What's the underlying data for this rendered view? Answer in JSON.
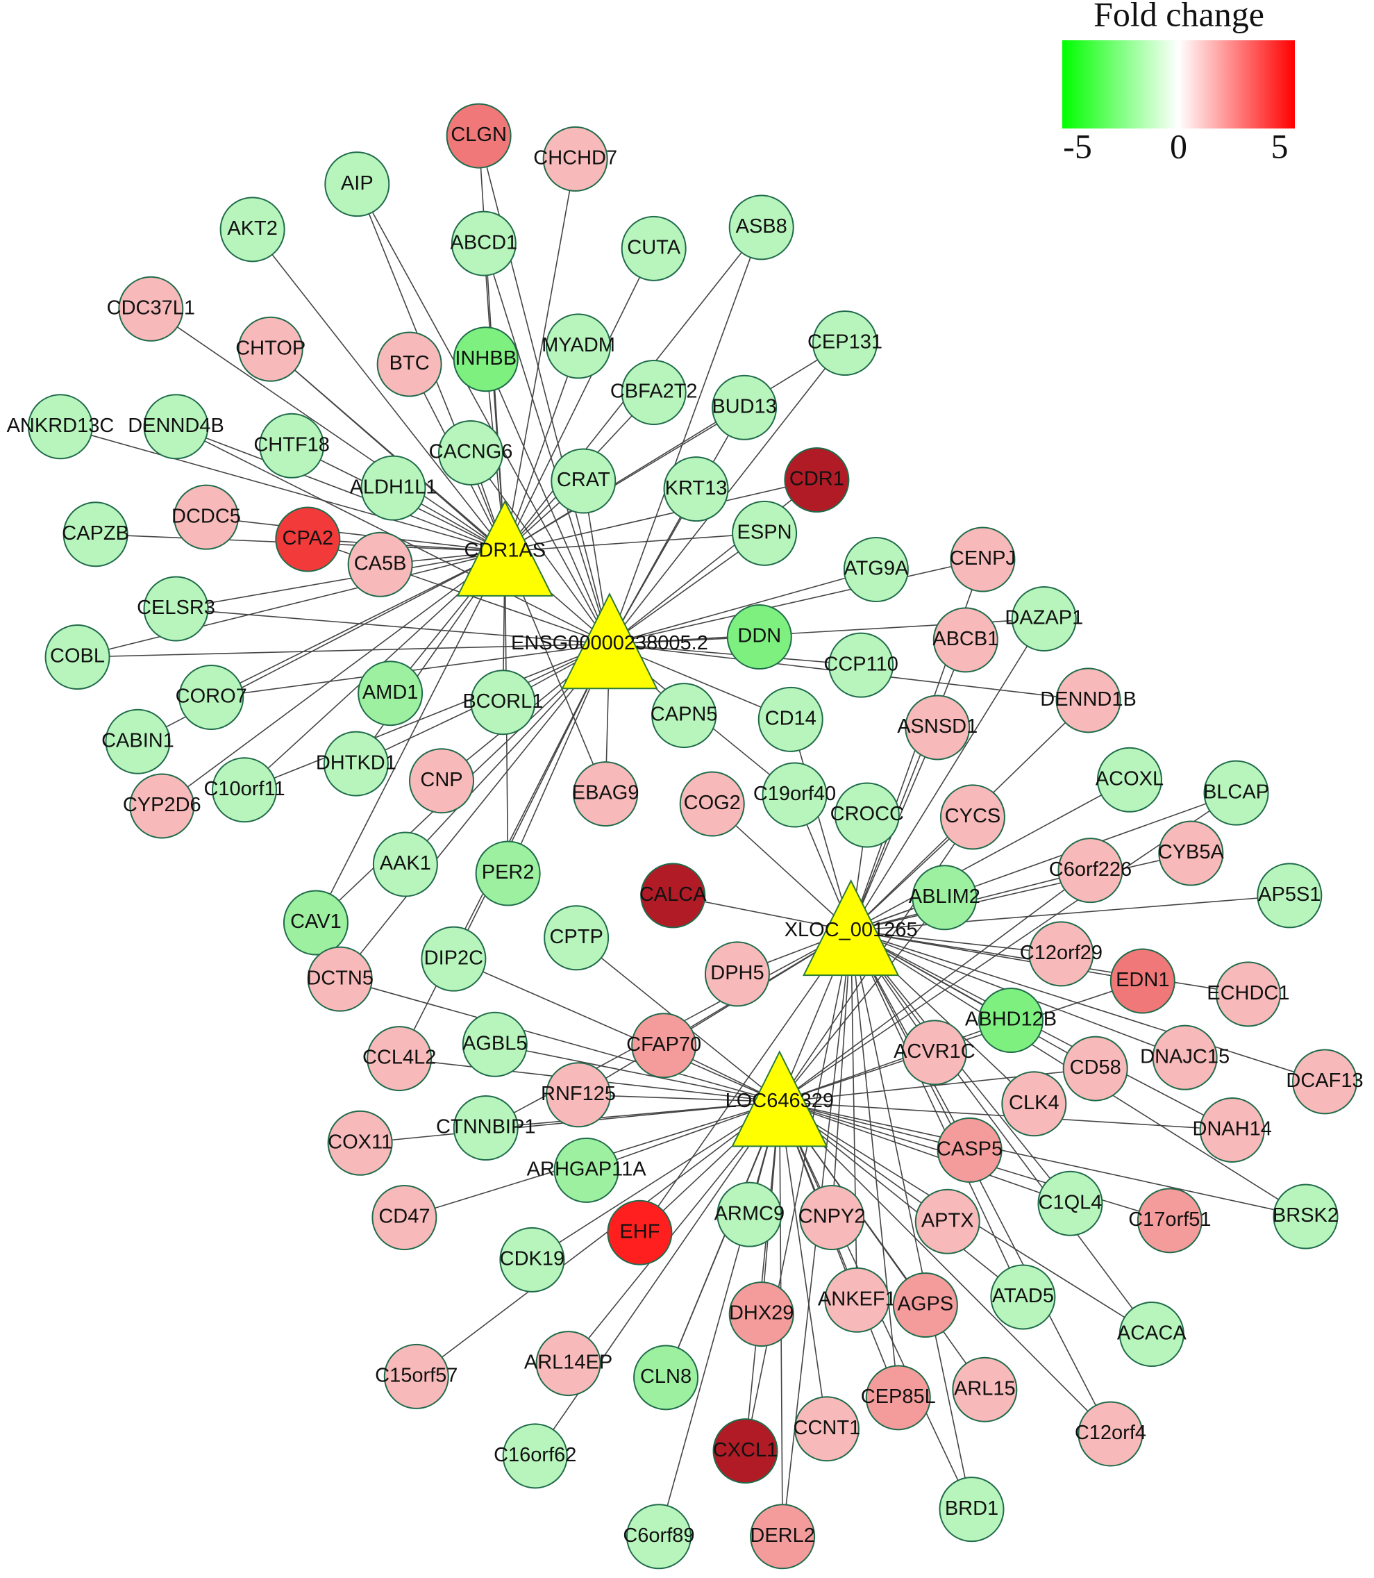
{
  "legend": {
    "title": "Fold change",
    "ticks": [
      -5,
      0,
      5
    ],
    "lim": [
      -5,
      5
    ],
    "colors": [
      "#00ff00",
      "#ffffff",
      "#ff0000"
    ]
  },
  "hubs": [
    {
      "label": "CDR1AS",
      "color": "#ffff00"
    },
    {
      "label": "ENSG00000238005.2",
      "color": "#ffff00"
    },
    {
      "label": "XLOC_001265",
      "color": "#ffff00"
    },
    {
      "label": "LOC646329",
      "color": "#ffff00"
    }
  ],
  "nodes": [
    {
      "label": "CLGN",
      "color": "#f07878"
    },
    {
      "label": "CHCHD7",
      "color": "#f7b9b9"
    },
    {
      "label": "AIP",
      "color": "#b8f5bd"
    },
    {
      "label": "AKT2",
      "color": "#b8f5bd"
    },
    {
      "label": "ABCD1",
      "color": "#b8f5bd"
    },
    {
      "label": "CUTA",
      "color": "#b8f5bd"
    },
    {
      "label": "ASB8",
      "color": "#b8f5bd"
    },
    {
      "label": "CDC37L1",
      "color": "#f7b9b9"
    },
    {
      "label": "CHTOP",
      "color": "#f7b9b9"
    },
    {
      "label": "BTC",
      "color": "#f7b9b9"
    },
    {
      "label": "INHBB",
      "color": "#7df080"
    },
    {
      "label": "MYADM",
      "color": "#b8f5bd"
    },
    {
      "label": "CEP131",
      "color": "#b8f5bd"
    },
    {
      "label": "CBFA2T2",
      "color": "#b8f5bd"
    },
    {
      "label": "BUD13",
      "color": "#b8f5bd"
    },
    {
      "label": "ANKRD13C",
      "color": "#b8f5bd"
    },
    {
      "label": "DENND4B",
      "color": "#b8f5bd"
    },
    {
      "label": "CHTF18",
      "color": "#b8f5bd"
    },
    {
      "label": "CACNG6",
      "color": "#b8f5bd"
    },
    {
      "label": "ALDH1L1",
      "color": "#b8f5bd"
    },
    {
      "label": "CRAT",
      "color": "#b8f5bd"
    },
    {
      "label": "KRT13",
      "color": "#b8f5bd"
    },
    {
      "label": "CDR1",
      "color": "#b01b26"
    },
    {
      "label": "DCDC5",
      "color": "#f7b9b9"
    },
    {
      "label": "CPA2",
      "color": "#f23a3a"
    },
    {
      "label": "CA5B",
      "color": "#f7b9b9"
    },
    {
      "label": "ESPN",
      "color": "#b8f5bd"
    },
    {
      "label": "CAPZB",
      "color": "#b8f5bd"
    },
    {
      "label": "CENPJ",
      "color": "#f7b9b9"
    },
    {
      "label": "ATG9A",
      "color": "#b8f5bd"
    },
    {
      "label": "CELSR3",
      "color": "#b8f5bd"
    },
    {
      "label": "DDN",
      "color": "#7df080"
    },
    {
      "label": "DAZAP1",
      "color": "#b8f5bd"
    },
    {
      "label": "ABCB1",
      "color": "#f7b9b9"
    },
    {
      "label": "COBL",
      "color": "#b8f5bd"
    },
    {
      "label": "CCP110",
      "color": "#b8f5bd"
    },
    {
      "label": "CORO7",
      "color": "#b8f5bd"
    },
    {
      "label": "AMD1",
      "color": "#9cf0a0"
    },
    {
      "label": "BCORL1",
      "color": "#b8f5bd"
    },
    {
      "label": "CAPN5",
      "color": "#b8f5bd"
    },
    {
      "label": "CD14",
      "color": "#b8f5bd"
    },
    {
      "label": "ASNSD1",
      "color": "#f7b9b9"
    },
    {
      "label": "DENND1B",
      "color": "#f7b9b9"
    },
    {
      "label": "CABIN1",
      "color": "#b8f5bd"
    },
    {
      "label": "DHTKD1",
      "color": "#b8f5bd"
    },
    {
      "label": "CNP",
      "color": "#f7b9b9"
    },
    {
      "label": "C10orf11",
      "color": "#b8f5bd"
    },
    {
      "label": "CYP2D6",
      "color": "#f7b9b9"
    },
    {
      "label": "EBAG9",
      "color": "#f7b9b9"
    },
    {
      "label": "COG2",
      "color": "#f7b9b9"
    },
    {
      "label": "C19orf40",
      "color": "#b8f5bd"
    },
    {
      "label": "CROCC",
      "color": "#b8f5bd"
    },
    {
      "label": "CYCS",
      "color": "#f7b9b9"
    },
    {
      "label": "ACOXL",
      "color": "#b8f5bd"
    },
    {
      "label": "BLCAP",
      "color": "#b8f5bd"
    },
    {
      "label": "AAK1",
      "color": "#b8f5bd"
    },
    {
      "label": "PER2",
      "color": "#9cf0a0"
    },
    {
      "label": "CALCA",
      "color": "#b01b26"
    },
    {
      "label": "C6orf226",
      "color": "#f7b9b9"
    },
    {
      "label": "CYB5A",
      "color": "#f7b9b9"
    },
    {
      "label": "ABLIM2",
      "color": "#9cf0a0"
    },
    {
      "label": "AP5S1",
      "color": "#b8f5bd"
    },
    {
      "label": "CAV1",
      "color": "#9cf0a0"
    },
    {
      "label": "CPTP",
      "color": "#b8f5bd"
    },
    {
      "label": "DIP2C",
      "color": "#b8f5bd"
    },
    {
      "label": "C12orf29",
      "color": "#f7b9b9"
    },
    {
      "label": "DCTN5",
      "color": "#f7b9b9"
    },
    {
      "label": "DPH5",
      "color": "#f7b9b9"
    },
    {
      "label": "EDN1",
      "color": "#f07878"
    },
    {
      "label": "ECHDC1",
      "color": "#f7b9b9"
    },
    {
      "label": "ABHD12B",
      "color": "#7df080"
    },
    {
      "label": "AGBL5",
      "color": "#b8f5bd"
    },
    {
      "label": "CFAP70",
      "color": "#f49c9c"
    },
    {
      "label": "ACVR1C",
      "color": "#f7b9b9"
    },
    {
      "label": "CCL4L2",
      "color": "#f7b9b9"
    },
    {
      "label": "DNAJC15",
      "color": "#f7b9b9"
    },
    {
      "label": "CD58",
      "color": "#f7b9b9"
    },
    {
      "label": "DCAF13",
      "color": "#f7b9b9"
    },
    {
      "label": "RNF125",
      "color": "#f7b9b9"
    },
    {
      "label": "CLK4",
      "color": "#f7b9b9"
    },
    {
      "label": "CTNNBIP1",
      "color": "#b8f5bd"
    },
    {
      "label": "COX11",
      "color": "#f7b9b9"
    },
    {
      "label": "DNAH14",
      "color": "#f7b9b9"
    },
    {
      "label": "ARHGAP11A",
      "color": "#9cf0a0"
    },
    {
      "label": "CASP5",
      "color": "#f49c9c"
    },
    {
      "label": "CD47",
      "color": "#f7b9b9"
    },
    {
      "label": "EHF",
      "color": "#ff1f1f"
    },
    {
      "label": "ARMC9",
      "color": "#b8f5bd"
    },
    {
      "label": "CNPY2",
      "color": "#f7b9b9"
    },
    {
      "label": "APTX",
      "color": "#f7b9b9"
    },
    {
      "label": "C1QL4",
      "color": "#b8f5bd"
    },
    {
      "label": "C17orf51",
      "color": "#f49c9c"
    },
    {
      "label": "BRSK2",
      "color": "#b8f5bd"
    },
    {
      "label": "CDK19",
      "color": "#b8f5bd"
    },
    {
      "label": "ATAD5",
      "color": "#b8f5bd"
    },
    {
      "label": "DHX29",
      "color": "#f49c9c"
    },
    {
      "label": "ANKEF1",
      "color": "#f7b9b9"
    },
    {
      "label": "AGPS",
      "color": "#f49c9c"
    },
    {
      "label": "ACACA",
      "color": "#b8f5bd"
    },
    {
      "label": "ARL14EP",
      "color": "#f7b9b9"
    },
    {
      "label": "CLN8",
      "color": "#9cf0a0"
    },
    {
      "label": "C15orf57",
      "color": "#f7b9b9"
    },
    {
      "label": "CEP85L",
      "color": "#f49c9c"
    },
    {
      "label": "ARL15",
      "color": "#f7b9b9"
    },
    {
      "label": "C12orf4",
      "color": "#f7b9b9"
    },
    {
      "label": "CCNT1",
      "color": "#f7b9b9"
    },
    {
      "label": "CXCL1",
      "color": "#b01b26"
    },
    {
      "label": "C16orf62",
      "color": "#b8f5bd"
    },
    {
      "label": "BRD1",
      "color": "#b8f5bd"
    },
    {
      "label": "C6orf89",
      "color": "#b8f5bd"
    },
    {
      "label": "DERL2",
      "color": "#f49c9c"
    }
  ]
}
